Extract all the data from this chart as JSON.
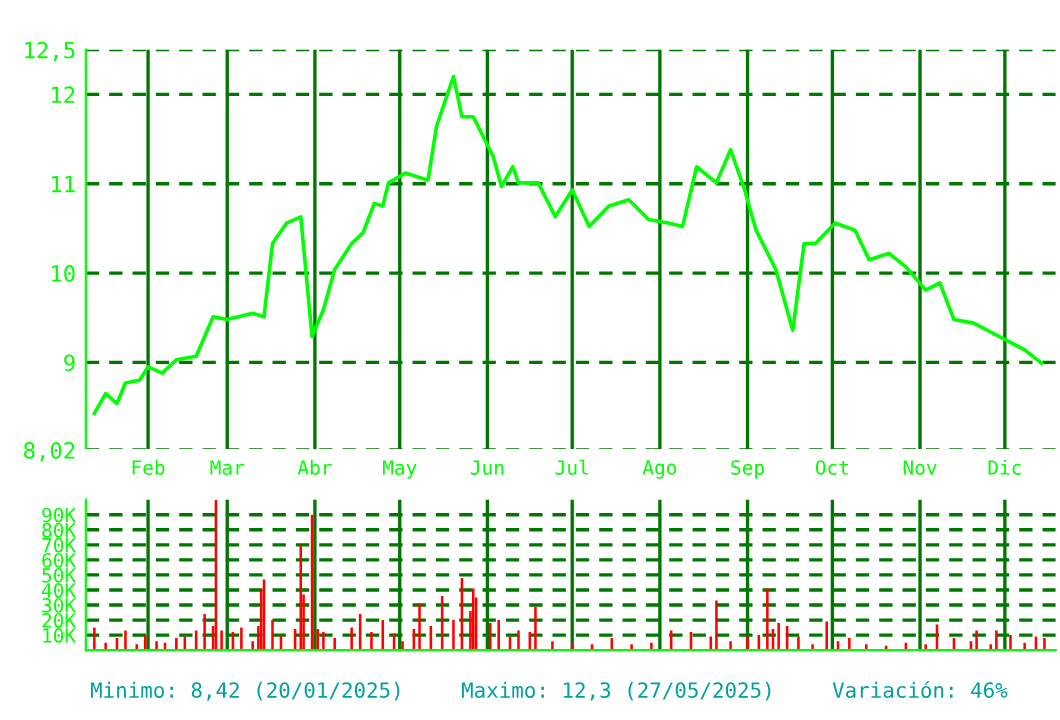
{
  "chart_data": [
    {
      "type": "line",
      "x": [
        "2025-01-13",
        "2025-01-17",
        "2025-01-21",
        "2025-01-24",
        "2025-01-29",
        "2025-02-01",
        "2025-02-06",
        "2025-02-11",
        "2025-02-18",
        "2025-02-24",
        "2025-03-01",
        "2025-03-10",
        "2025-03-14",
        "2025-03-17",
        "2025-03-22",
        "2025-03-27",
        "2025-03-31",
        "2025-04-04",
        "2025-04-08",
        "2025-04-14",
        "2025-04-18",
        "2025-04-22",
        "2025-04-25",
        "2025-04-27",
        "2025-05-03",
        "2025-05-11",
        "2025-05-14",
        "2025-05-20",
        "2025-05-23",
        "2025-05-27",
        "2025-06-03",
        "2025-06-06",
        "2025-06-10",
        "2025-06-12",
        "2025-06-19",
        "2025-06-25",
        "2025-07-01",
        "2025-07-07",
        "2025-07-14",
        "2025-07-21",
        "2025-07-28",
        "2025-08-04",
        "2025-08-09",
        "2025-08-14",
        "2025-08-21",
        "2025-08-26",
        "2025-08-31",
        "2025-09-04",
        "2025-09-11",
        "2025-09-17",
        "2025-09-21",
        "2025-09-25",
        "2025-10-02",
        "2025-10-09",
        "2025-10-14",
        "2025-10-21",
        "2025-10-27",
        "2025-11-03",
        "2025-11-08",
        "2025-11-13",
        "2025-11-20",
        "2025-11-29",
        "2025-12-08",
        "2025-12-14"
      ],
      "series": [
        {
          "color": "#00ff00",
          "values": [
            8.43,
            8.65,
            8.54,
            8.77,
            8.8,
            8.95,
            8.88,
            9.03,
            9.07,
            9.51,
            9.48,
            9.55,
            9.51,
            10.33,
            10.56,
            10.63,
            9.29,
            9.59,
            10.04,
            10.33,
            10.45,
            10.78,
            10.75,
            11.01,
            11.12,
            11.04,
            11.64,
            12.2,
            11.75,
            11.75,
            11.31,
            10.97,
            11.19,
            11.01,
            11.01,
            10.63,
            10.93,
            10.52,
            10.75,
            10.82,
            10.6,
            10.56,
            10.52,
            11.19,
            11.01,
            11.38,
            10.93,
            10.48,
            10.04,
            9.36,
            10.33,
            10.33,
            10.56,
            10.48,
            10.15,
            10.22,
            10.07,
            9.81,
            9.89,
            9.48,
            9.44,
            9.29,
            9.14,
            8.99
          ]
        }
      ],
      "xlim": [
        "2025-01-10",
        "2025-12-19"
      ],
      "xticks": [
        {
          "value": "2025-02-01",
          "label": "Feb"
        },
        {
          "value": "2025-03-01",
          "label": "Mar"
        },
        {
          "value": "2025-04-01",
          "label": "Abr"
        },
        {
          "value": "2025-05-01",
          "label": "May"
        },
        {
          "value": "2025-06-01",
          "label": "Jun"
        },
        {
          "value": "2025-07-01",
          "label": "Jul"
        },
        {
          "value": "2025-08-01",
          "label": "Ago"
        },
        {
          "value": "2025-09-01",
          "label": "Sep"
        },
        {
          "value": "2025-10-01",
          "label": "Oct"
        },
        {
          "value": "2025-11-01",
          "label": "Nov"
        },
        {
          "value": "2025-12-01",
          "label": "Dic"
        }
      ],
      "ylim": [
        8.02,
        12.5
      ],
      "yticks": [
        {
          "value": 8.02,
          "label": "8,02"
        },
        9,
        10,
        11,
        12,
        {
          "value": 12.5,
          "label": "12,5"
        }
      ],
      "grid": true,
      "legend": false
    },
    {
      "type": "bar",
      "x": [
        "2025-01-13",
        "2025-01-17",
        "2025-01-21",
        "2025-01-24",
        "2025-01-28",
        "2025-01-31",
        "2025-02-04",
        "2025-02-07",
        "2025-02-11",
        "2025-02-14",
        "2025-02-18",
        "2025-02-21",
        "2025-02-24",
        "2025-02-25",
        "2025-02-27",
        "2025-03-03",
        "2025-03-06",
        "2025-03-10",
        "2025-03-12",
        "2025-03-13",
        "2025-03-14",
        "2025-03-17",
        "2025-03-20",
        "2025-03-25",
        "2025-03-27",
        "2025-03-28",
        "2025-03-31",
        "2025-04-02",
        "2025-04-04",
        "2025-04-08",
        "2025-04-14",
        "2025-04-17",
        "2025-04-21",
        "2025-04-25",
        "2025-04-29",
        "2025-05-02",
        "2025-05-06",
        "2025-05-08",
        "2025-05-12",
        "2025-05-16",
        "2025-05-20",
        "2025-05-23",
        "2025-05-26",
        "2025-05-27",
        "2025-05-28",
        "2025-06-02",
        "2025-06-05",
        "2025-06-09",
        "2025-06-12",
        "2025-06-16",
        "2025-06-18",
        "2025-06-24",
        "2025-07-01",
        "2025-07-08",
        "2025-07-15",
        "2025-07-22",
        "2025-07-29",
        "2025-08-05",
        "2025-08-12",
        "2025-08-19",
        "2025-08-21",
        "2025-08-26",
        "2025-09-01",
        "2025-09-05",
        "2025-09-08",
        "2025-09-10",
        "2025-09-12",
        "2025-09-15",
        "2025-09-19",
        "2025-09-24",
        "2025-09-29",
        "2025-10-03",
        "2025-10-07",
        "2025-10-13",
        "2025-10-20",
        "2025-10-27",
        "2025-11-03",
        "2025-11-07",
        "2025-11-13",
        "2025-11-19",
        "2025-11-21",
        "2025-11-26",
        "2025-11-28",
        "2025-12-03",
        "2025-12-08",
        "2025-12-12",
        "2025-12-15"
      ],
      "series": [
        {
          "color": "#ff0000",
          "values": [
            15000,
            5000,
            8000,
            13000,
            4000,
            10000,
            6000,
            5000,
            8000,
            9000,
            13000,
            24000,
            16000,
            100000,
            13000,
            12000,
            15000,
            6000,
            16000,
            40000,
            47000,
            20000,
            10000,
            14000,
            70000,
            37000,
            90000,
            14000,
            12000,
            8000,
            15000,
            24000,
            12000,
            20000,
            11000,
            6000,
            14000,
            31000,
            16000,
            36000,
            20000,
            48000,
            26000,
            41000,
            35000,
            18000,
            20000,
            9000,
            13000,
            12000,
            29000,
            6000,
            5000,
            4000,
            8000,
            4000,
            5000,
            13000,
            12000,
            9000,
            33000,
            6000,
            9000,
            10000,
            41000,
            14000,
            18000,
            16000,
            9000,
            4000,
            19000,
            6000,
            8000,
            4000,
            3000,
            5000,
            4000,
            17000,
            8000,
            6000,
            13000,
            4000,
            13000,
            10000,
            5000,
            9000,
            8000
          ]
        }
      ],
      "xlim": [
        "2025-01-10",
        "2025-12-19"
      ],
      "xticks": [
        {
          "value": "2025-02-01",
          "label": null
        },
        {
          "value": "2025-03-01",
          "label": null
        },
        {
          "value": "2025-04-01",
          "label": null
        },
        {
          "value": "2025-05-01",
          "label": null
        },
        {
          "value": "2025-06-01",
          "label": null
        },
        {
          "value": "2025-07-01",
          "label": null
        },
        {
          "value": "2025-08-01",
          "label": null
        },
        {
          "value": "2025-09-01",
          "label": null
        },
        {
          "value": "2025-10-01",
          "label": null
        },
        {
          "value": "2025-11-01",
          "label": null
        },
        {
          "value": "2025-12-01",
          "label": null
        }
      ],
      "ylim": [
        0,
        100000
      ],
      "yticks": [
        {
          "value": 10000,
          "label": "10K"
        },
        {
          "value": 20000,
          "label": "20K"
        },
        {
          "value": 30000,
          "label": "30K"
        },
        {
          "value": 40000,
          "label": "40K"
        },
        {
          "value": 50000,
          "label": "50K"
        },
        {
          "value": 60000,
          "label": "60K"
        },
        {
          "value": 70000,
          "label": "70K"
        },
        {
          "value": 80000,
          "label": "80K"
        },
        {
          "value": 90000,
          "label": "90K"
        }
      ],
      "tick_labels": "y",
      "grid": true,
      "legend": false,
      "annotations": [
        "Minimo: 8,42 (20/01/2025)",
        "Maximo: 12,3 (27/05/2025)",
        "Variación: 46%"
      ]
    }
  ]
}
